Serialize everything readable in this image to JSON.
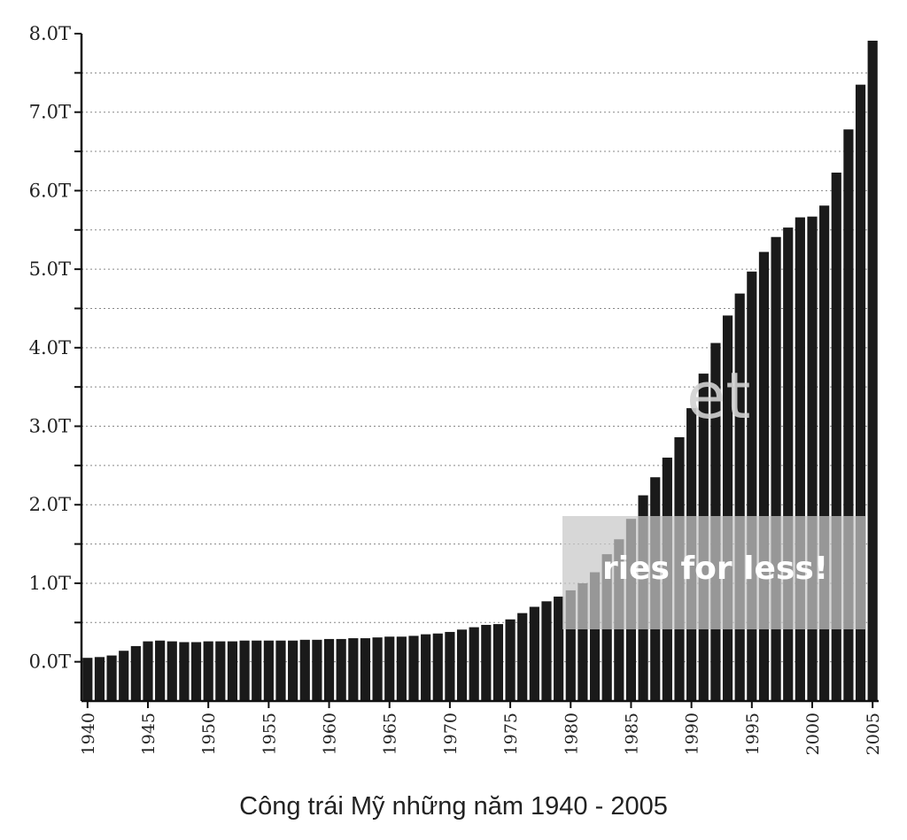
{
  "chart_data": {
    "type": "bar",
    "title": "",
    "caption": "Công trái Mỹ những năm 1940 - 2005",
    "xlabel": "",
    "ylabel": "",
    "y_ticks": [
      "8.0T",
      "7.0T",
      "6.0T",
      "5.0T",
      "4.0T",
      "3.0T",
      "2.0T",
      "1.0T",
      "0.0T"
    ],
    "y_tick_values": [
      8.0,
      7.0,
      6.0,
      5.0,
      4.0,
      3.0,
      2.0,
      1.0,
      0.0
    ],
    "ylim": [
      -0.5,
      8.0
    ],
    "grid": "horizontal-dotted",
    "x_ticks": [
      "1940",
      "1945",
      "1950",
      "1955",
      "1960",
      "1965",
      "1970",
      "1975",
      "1980",
      "1985",
      "1990",
      "1995",
      "2000",
      "2005"
    ],
    "categories": [
      1940,
      1941,
      1942,
      1943,
      1944,
      1945,
      1946,
      1947,
      1948,
      1949,
      1950,
      1951,
      1952,
      1953,
      1954,
      1955,
      1956,
      1957,
      1958,
      1959,
      1960,
      1961,
      1962,
      1963,
      1964,
      1965,
      1966,
      1967,
      1968,
      1969,
      1970,
      1971,
      1972,
      1973,
      1974,
      1975,
      1976,
      1977,
      1978,
      1979,
      1980,
      1981,
      1982,
      1983,
      1984,
      1985,
      1986,
      1987,
      1988,
      1989,
      1990,
      1991,
      1992,
      1993,
      1994,
      1995,
      1996,
      1997,
      1998,
      1999,
      2000,
      2001,
      2002,
      2003,
      2004,
      2005
    ],
    "values": [
      0.05,
      0.06,
      0.08,
      0.14,
      0.2,
      0.26,
      0.27,
      0.26,
      0.25,
      0.25,
      0.26,
      0.26,
      0.26,
      0.27,
      0.27,
      0.27,
      0.27,
      0.27,
      0.28,
      0.28,
      0.29,
      0.29,
      0.3,
      0.3,
      0.31,
      0.32,
      0.32,
      0.33,
      0.35,
      0.36,
      0.38,
      0.41,
      0.44,
      0.47,
      0.48,
      0.54,
      0.62,
      0.7,
      0.77,
      0.83,
      0.91,
      1.0,
      1.14,
      1.37,
      1.56,
      1.82,
      2.12,
      2.35,
      2.6,
      2.86,
      3.23,
      3.67,
      4.06,
      4.41,
      4.69,
      4.97,
      5.22,
      5.41,
      5.53,
      5.66,
      5.67,
      5.81,
      6.23,
      6.78,
      7.35,
      7.91
    ],
    "colors": {
      "bar": "#1a1a1a",
      "axis": "#111111",
      "grid": "#888888"
    },
    "watermark": {
      "logo_text": "et",
      "tagline": "ries for less!"
    }
  }
}
